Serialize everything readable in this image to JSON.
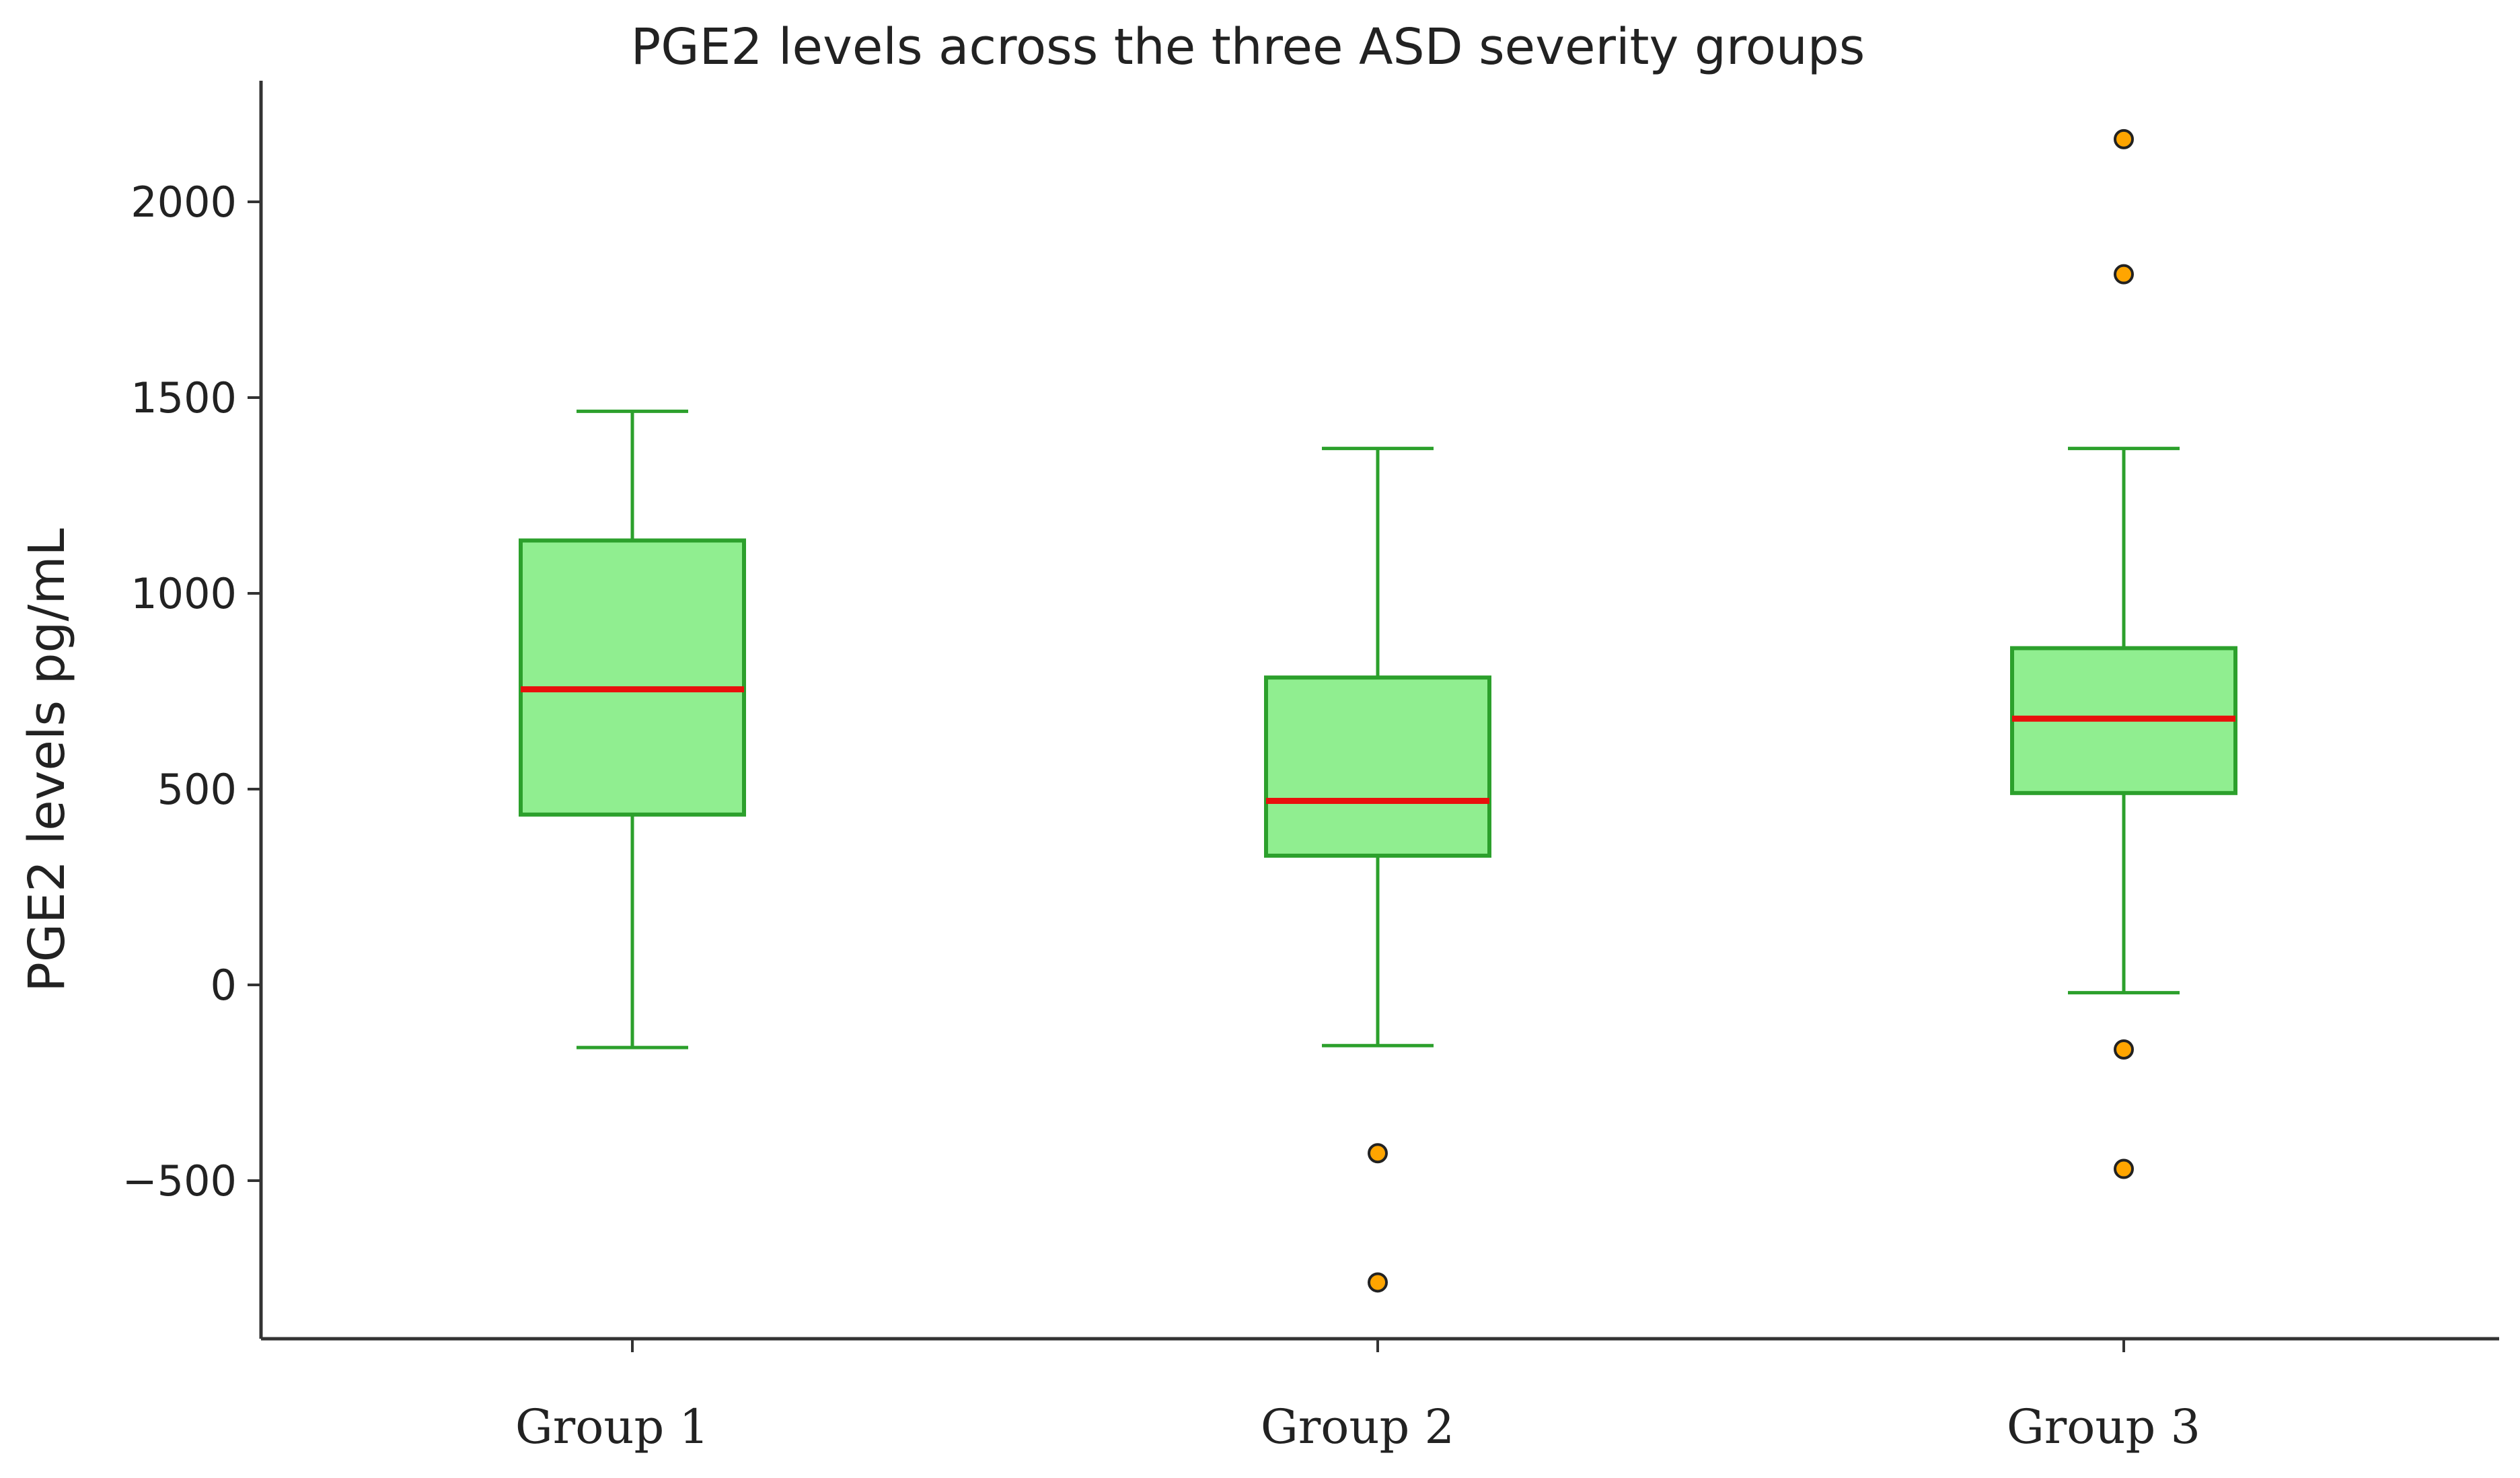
{
  "chart_data": {
    "type": "box",
    "title": "PGE2 levels across the three ASD severity groups",
    "xlabel": "",
    "ylabel": "PGE2 levels pg/mL",
    "ylim": [
      -900,
      2300
    ],
    "yticks": [
      -500,
      0,
      500,
      1000,
      1500,
      2000
    ],
    "ytick_labels": [
      "−500",
      "0",
      "500",
      "1000",
      "1500",
      "2000"
    ],
    "grid": false,
    "categories": [
      "Group 1",
      "Group 2",
      "Group 3"
    ],
    "groups": [
      {
        "name": "Group 1",
        "whisker_low": -160,
        "q1": 435,
        "median": 755,
        "q3": 1135,
        "whisker_high": 1465,
        "outliers": []
      },
      {
        "name": "Group 2",
        "whisker_low": -155,
        "q1": 330,
        "median": 470,
        "q3": 785,
        "whisker_high": 1370,
        "outliers": [
          -430,
          -760
        ]
      },
      {
        "name": "Group 3",
        "whisker_low": -20,
        "q1": 490,
        "median": 680,
        "q3": 860,
        "whisker_high": 1370,
        "outliers": [
          2160,
          1815,
          -165,
          -470
        ]
      }
    ],
    "colors": {
      "box_fill": "#90ee90",
      "box_edge": "#2ca02c",
      "median": "#e8100c",
      "outlier_fill": "#ffa500",
      "outlier_edge": "#222222",
      "axis": "#333333"
    }
  }
}
